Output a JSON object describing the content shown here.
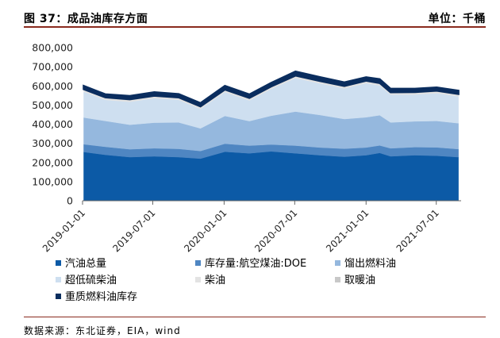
{
  "header": {
    "title": "图 37：成品油库存方面",
    "unit": "单位：千桶"
  },
  "footer": {
    "source": "数据来源：东北证券，EIA，wind"
  },
  "chart_data": {
    "type": "area",
    "stacked": true,
    "grid": false,
    "legend_position": "bottom",
    "ylim": [
      0,
      800000
    ],
    "yticks": [
      "0",
      "100,000",
      "200,000",
      "300,000",
      "400,000",
      "500,000",
      "600,000",
      "700,000",
      "800,000"
    ],
    "xticks": [
      "2019-01-01",
      "2019-07-01",
      "2020-01-01",
      "2020-07-01",
      "2021-01-01",
      "2021-07-01"
    ],
    "x": [
      "2019-01-04",
      "2019-03-01",
      "2019-05-03",
      "2019-07-05",
      "2019-09-06",
      "2019-11-01",
      "2020-01-03",
      "2020-03-06",
      "2020-05-01",
      "2020-07-03",
      "2020-09-04",
      "2020-11-06",
      "2021-01-01",
      "2021-02-05",
      "2021-03-05",
      "2021-05-07",
      "2021-07-02",
      "2021-08-27"
    ],
    "series": [
      {
        "name": "汽油总量",
        "color": "#0c5aa6",
        "values": [
          255000,
          240000,
          228000,
          232000,
          228000,
          220000,
          256000,
          248000,
          258000,
          248000,
          238000,
          230000,
          238000,
          250000,
          232000,
          238000,
          235000,
          228000
        ]
      },
      {
        "name": "库存量:航空煤油:DOE",
        "color": "#4f86c2",
        "values": [
          40000,
          42000,
          41000,
          42000,
          43000,
          40000,
          42000,
          40000,
          36000,
          40000,
          40000,
          42000,
          40000,
          39000,
          42000,
          42000,
          44000,
          42000
        ]
      },
      {
        "name": "馏出燃料油",
        "color": "#95b8de",
        "values": [
          140000,
          135000,
          128000,
          134000,
          138000,
          118000,
          145000,
          128000,
          150000,
          178000,
          170000,
          155000,
          158000,
          158000,
          135000,
          135000,
          138000,
          135000
        ]
      },
      {
        "name": "超低硫柴油",
        "color": "#cedff0",
        "values": [
          135000,
          110000,
          120000,
          128000,
          118000,
          102000,
          125000,
          108000,
          140000,
          175000,
          165000,
          160000,
          178000,
          155000,
          145000,
          140000,
          145000,
          140000
        ]
      },
      {
        "name": "柴油",
        "color": "#e3e3e3",
        "values": [
          8000,
          8000,
          8000,
          8000,
          8000,
          8000,
          8000,
          8000,
          8000,
          8000,
          8000,
          8000,
          8000,
          8000,
          8000,
          8000,
          8000,
          8000
        ]
      },
      {
        "name": "取暖油",
        "color": "#c8c8c8",
        "values": [
          5000,
          5000,
          5000,
          5000,
          5000,
          5000,
          5000,
          5000,
          5000,
          5000,
          5000,
          5000,
          5000,
          5000,
          5000,
          5000,
          5000,
          5000
        ]
      },
      {
        "name": "重质燃料油库存",
        "color": "#0a2d5e",
        "values": [
          17000,
          16000,
          17000,
          18000,
          17000,
          17000,
          19000,
          18000,
          18000,
          21000,
          20000,
          18000,
          18000,
          20000,
          18000,
          17000,
          17000,
          17000
        ]
      }
    ]
  }
}
